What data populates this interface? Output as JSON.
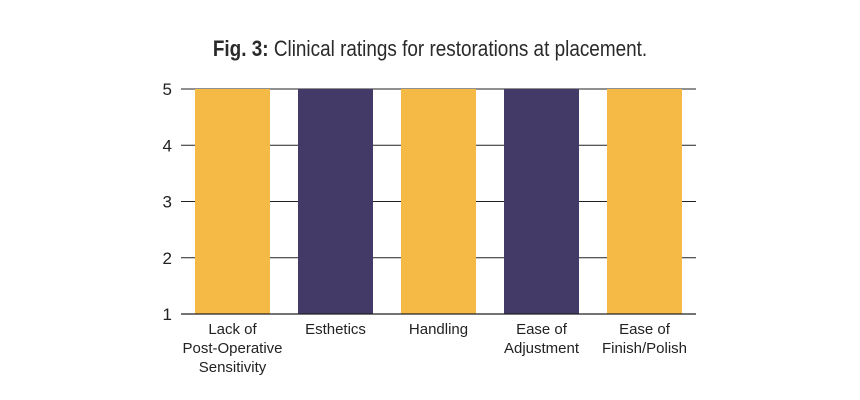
{
  "title": {
    "prefix": "Fig. 3:",
    "text": "Clinical ratings for restorations at placement."
  },
  "colors": {
    "gold": "#F5B945",
    "purple": "#443A68",
    "axis": "#222222"
  },
  "chart_data": {
    "type": "bar",
    "title": "Fig. 3: Clinical ratings for restorations at placement.",
    "categories": [
      [
        "Lack of",
        "Post-Operative",
        "Sensitivity"
      ],
      [
        "Esthetics"
      ],
      [
        "Handling"
      ],
      [
        "Ease of",
        "Adjustment"
      ],
      [
        "Ease of",
        "Finish/Polish"
      ]
    ],
    "values": [
      5,
      5,
      5,
      5,
      5
    ],
    "bar_colors": [
      "#F5B945",
      "#443A68",
      "#F5B945",
      "#443A68",
      "#F5B945"
    ],
    "ylim": [
      1,
      5
    ],
    "yticks": [
      "1",
      "2",
      "3",
      "4",
      "5"
    ],
    "xlabel": "",
    "ylabel": "",
    "grid": true
  }
}
